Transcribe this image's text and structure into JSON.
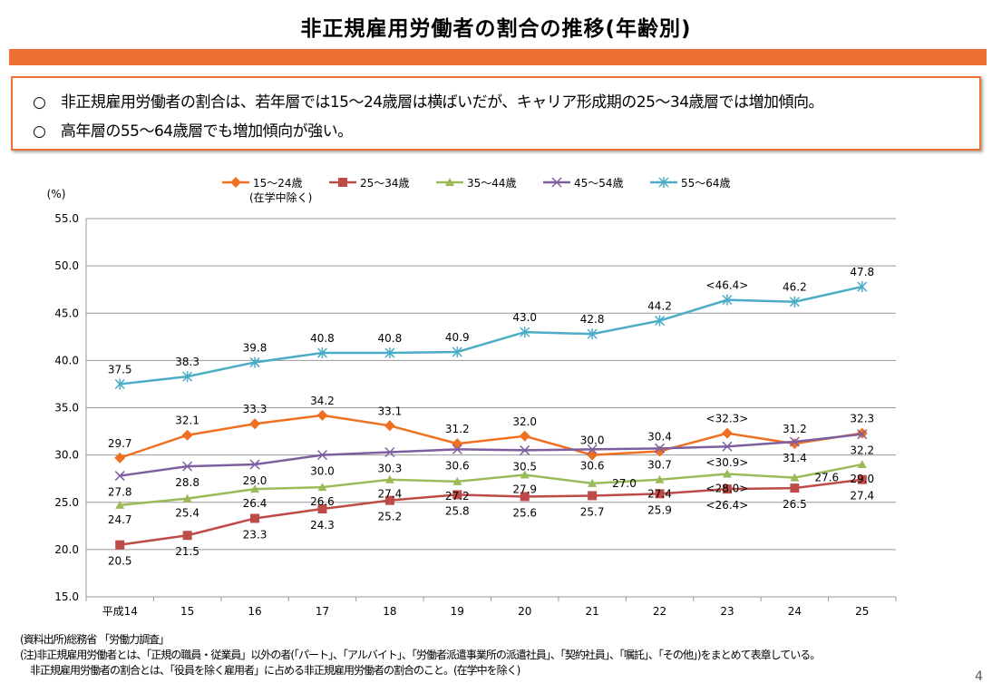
{
  "title": "非正規雇用労働者の割合の推移(年齢別)",
  "summary": [
    "○　非正規雇用労働者の割合は、若年層では15～24歳層は横ばいだが、キャリア形成期の25～34歳層では増加傾向。",
    "○　高年層の55～64歳層でも増加傾向が強い。"
  ],
  "chart_data": {
    "type": "line",
    "ylabel": "(%)",
    "ylim": [
      15,
      55
    ],
    "yticks": [
      "15.0",
      "20.0",
      "25.0",
      "30.0",
      "35.0",
      "40.0",
      "45.0",
      "50.0",
      "55.0"
    ],
    "grid": true,
    "legend_position": "top",
    "categories": [
      "平成14",
      "15",
      "16",
      "17",
      "18",
      "19",
      "20",
      "21",
      "22",
      "23",
      "24",
      "25"
    ],
    "series": [
      {
        "name": "15～24歳",
        "sub": "(在学中除く)",
        "color": "#f07022",
        "marker": "diamond",
        "values": [
          29.7,
          32.1,
          33.3,
          34.2,
          33.1,
          31.2,
          32.0,
          30.0,
          30.4,
          32.3,
          31.2,
          32.3
        ],
        "labels": [
          "29.7",
          "32.1",
          "33.3",
          "34.2",
          "33.1",
          "31.2",
          "32.0",
          "30.0",
          "30.4",
          "<32.3>",
          "31.2",
          "32.3"
        ]
      },
      {
        "name": "25～34歳",
        "color": "#be4b48",
        "marker": "square",
        "values": [
          20.5,
          21.5,
          23.3,
          24.3,
          25.2,
          25.8,
          25.6,
          25.7,
          25.9,
          26.4,
          26.5,
          27.4
        ],
        "labels": [
          "20.5",
          "21.5",
          "23.3",
          "24.3",
          "25.2",
          "25.8",
          "25.6",
          "25.7",
          "25.9",
          "<26.4>",
          "26.5",
          "27.4"
        ]
      },
      {
        "name": "35～44歳",
        "color": "#9bbb59",
        "marker": "triangle",
        "values": [
          24.7,
          25.4,
          26.4,
          26.6,
          27.4,
          27.2,
          27.9,
          27.0,
          27.4,
          28.0,
          27.6,
          29.0
        ],
        "labels": [
          "24.7",
          "25.4",
          "26.4",
          "26.6",
          "27.4",
          "27.2",
          "27.9",
          "27.0",
          "27.4",
          "<28.0>",
          "27.6",
          "29.0"
        ]
      },
      {
        "name": "45～54歳",
        "color": "#7d5fa0",
        "marker": "x",
        "values": [
          27.8,
          28.8,
          29.0,
          30.0,
          30.3,
          30.6,
          30.5,
          30.6,
          30.7,
          30.9,
          31.4,
          32.2
        ],
        "labels": [
          "27.8",
          "28.8",
          "29.0",
          "30.0",
          "30.3",
          "30.6",
          "30.5",
          "30.6",
          "30.7",
          "<30.9>",
          "31.4",
          "32.2"
        ]
      },
      {
        "name": "55～64歳",
        "color": "#4bacc6",
        "marker": "star",
        "values": [
          37.5,
          38.3,
          39.8,
          40.8,
          40.8,
          40.9,
          43.0,
          42.8,
          44.2,
          46.4,
          46.2,
          47.8
        ],
        "labels": [
          "37.5",
          "38.3",
          "39.8",
          "40.8",
          "40.8",
          "40.9",
          "43.0",
          "42.8",
          "44.2",
          "<46.4>",
          "46.2",
          "47.8"
        ]
      }
    ]
  },
  "notes": [
    "(資料出所)総務省 「労働力調査」",
    "(注)非正規雇用労働者とは、「正規の職員・従業員」以外の者(「パート」、「アルバイト」、「労働者派遣事業所の派遣社員」、「契約社員」、「嘱託」、「その他」)をまとめて表章している。",
    "　非正規雇用労働者の割合とは、「役員を除く雇用者」に占める非正規雇用労働者の割合のこと。(在学中を除く)"
  ],
  "page_number": "4"
}
